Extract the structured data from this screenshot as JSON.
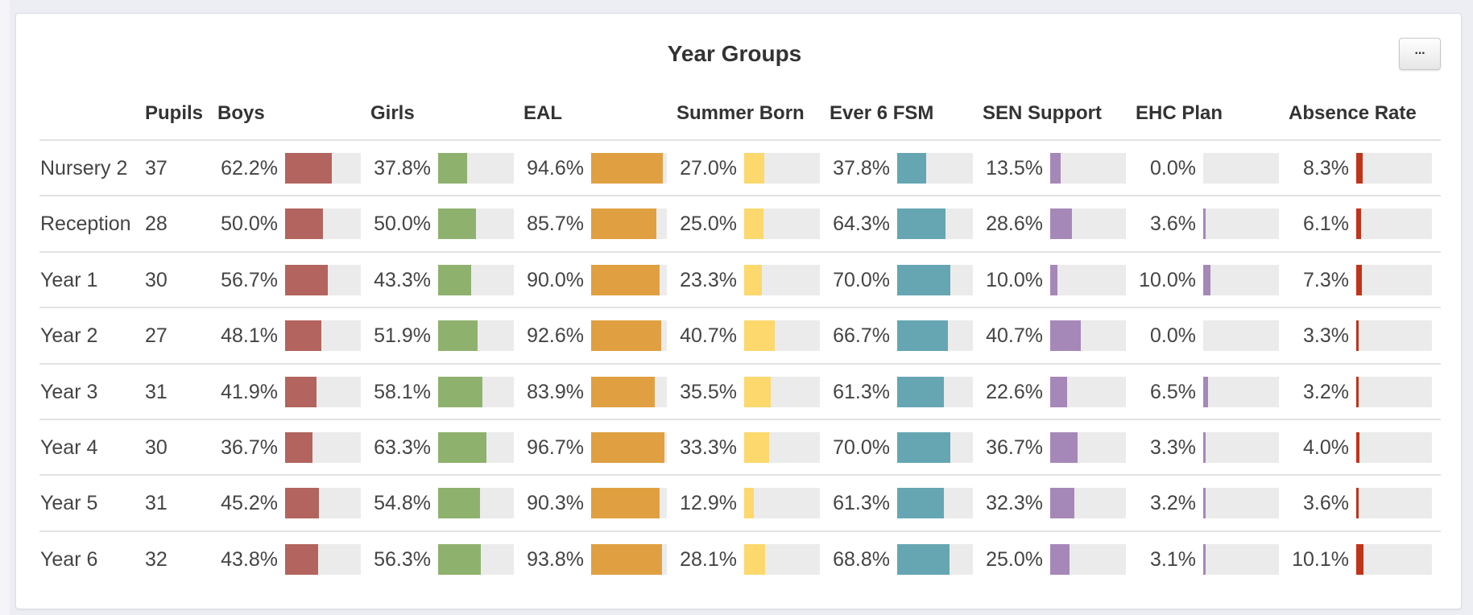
{
  "title": "Year Groups",
  "menu_button": "···",
  "headers": {
    "pupils": "Pupils",
    "metrics": [
      "Boys",
      "Girls",
      "EAL",
      "Summer Born",
      "Ever 6 FSM",
      "SEN Support",
      "EHC Plan",
      "Absence Rate"
    ]
  },
  "colors": {
    "Boys": "#b3645e",
    "Girls": "#8fb16e",
    "EAL": "#e0a041",
    "Summer Born": "#fcd86d",
    "Ever 6 FSM": "#65a6b2",
    "SEN Support": "#a688b8",
    "EHC Plan": "#a688b8",
    "Absence Rate": "#c0341a",
    "track": "#ebebeb"
  },
  "rows": [
    {
      "name": "Nursery 2",
      "pupils": "37",
      "values": [
        "62.2%",
        "37.8%",
        "94.6%",
        "27.0%",
        "37.8%",
        "13.5%",
        "0.0%",
        "8.3%"
      ]
    },
    {
      "name": "Reception",
      "pupils": "28",
      "values": [
        "50.0%",
        "50.0%",
        "85.7%",
        "25.0%",
        "64.3%",
        "28.6%",
        "3.6%",
        "6.1%"
      ]
    },
    {
      "name": "Year 1",
      "pupils": "30",
      "values": [
        "56.7%",
        "43.3%",
        "90.0%",
        "23.3%",
        "70.0%",
        "10.0%",
        "10.0%",
        "7.3%"
      ]
    },
    {
      "name": "Year 2",
      "pupils": "27",
      "values": [
        "48.1%",
        "51.9%",
        "92.6%",
        "40.7%",
        "66.7%",
        "40.7%",
        "0.0%",
        "3.3%"
      ]
    },
    {
      "name": "Year 3",
      "pupils": "31",
      "values": [
        "41.9%",
        "58.1%",
        "83.9%",
        "35.5%",
        "61.3%",
        "22.6%",
        "6.5%",
        "3.2%"
      ]
    },
    {
      "name": "Year 4",
      "pupils": "30",
      "values": [
        "36.7%",
        "63.3%",
        "96.7%",
        "33.3%",
        "70.0%",
        "36.7%",
        "3.3%",
        "4.0%"
      ]
    },
    {
      "name": "Year 5",
      "pupils": "31",
      "values": [
        "45.2%",
        "54.8%",
        "90.3%",
        "12.9%",
        "61.3%",
        "32.3%",
        "3.2%",
        "3.6%"
      ]
    },
    {
      "name": "Year 6",
      "pupils": "32",
      "values": [
        "43.8%",
        "56.3%",
        "93.8%",
        "28.1%",
        "68.8%",
        "25.0%",
        "3.1%",
        "10.1%"
      ]
    }
  ]
}
